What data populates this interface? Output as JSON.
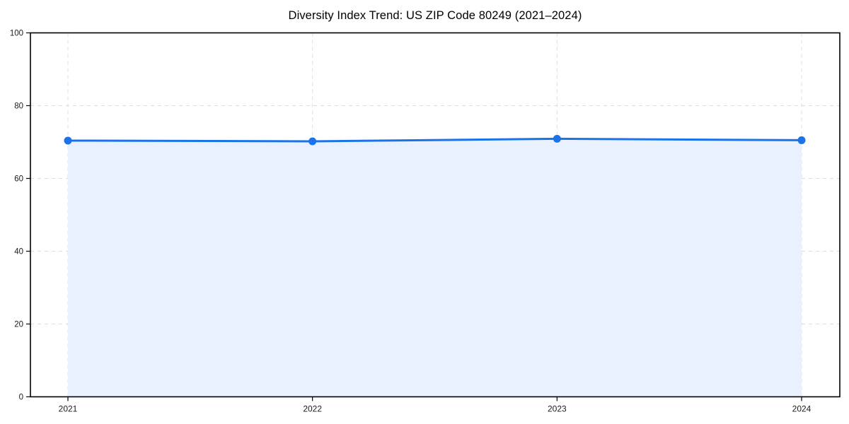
{
  "chart_data": {
    "type": "area",
    "title": "Diversity Index Trend: US ZIP Code 80249 (2021–2024)",
    "categories": [
      "2021",
      "2022",
      "2023",
      "2024"
    ],
    "series": [
      {
        "name": "Diversity Index",
        "values": [
          70.4,
          70.2,
          70.9,
          70.5
        ]
      }
    ],
    "ylim": [
      0,
      100
    ],
    "yticks": [
      0,
      20,
      40,
      60,
      80,
      100
    ],
    "grid": "dashed",
    "legend": "none",
    "colors": {
      "line": "#1a73e8",
      "marker": "#1a73e8",
      "fill": "#e8f1fd",
      "grid": "#dcdcdc",
      "axis": "#000000",
      "tick_text": "#1a1a1a"
    }
  }
}
